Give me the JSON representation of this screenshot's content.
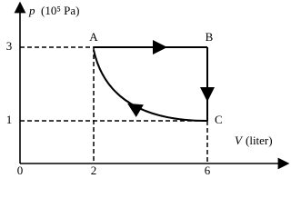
{
  "axes": {
    "y_label": "p",
    "y_unit": "(10⁵ Pa)",
    "x_label": "V",
    "x_unit": "(liter)",
    "origin": 0,
    "x_ticks": [
      2,
      6
    ],
    "y_ticks": [
      3,
      1
    ]
  },
  "points": [
    {
      "label": "A"
    },
    {
      "label": "B"
    },
    {
      "label": "C"
    }
  ]
}
